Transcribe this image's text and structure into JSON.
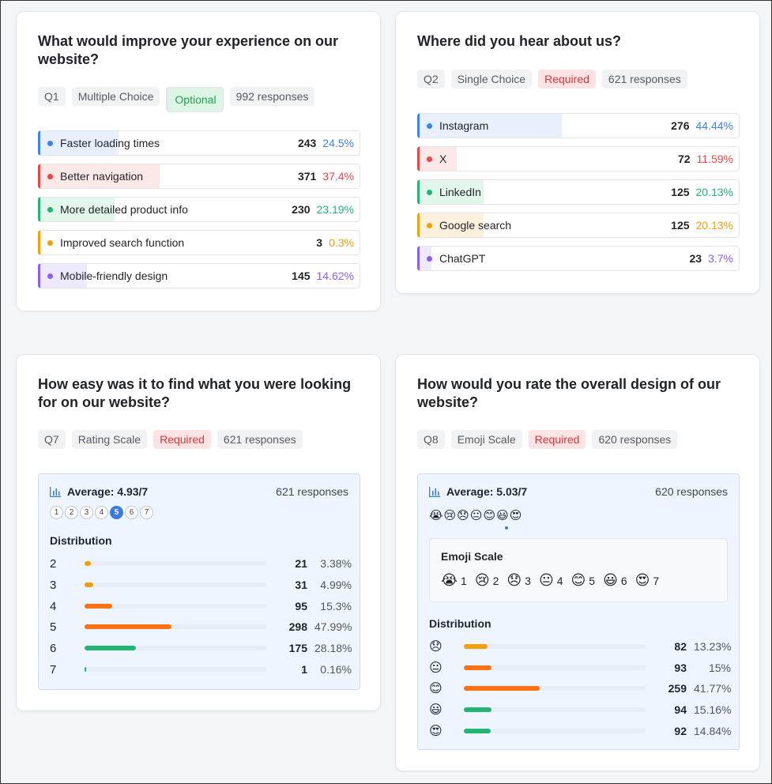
{
  "q1": {
    "title": "What would improve your experience on our website?",
    "tags": [
      "Q1",
      "Multiple Choice",
      "Optional",
      "992 responses"
    ],
    "options": [
      {
        "label": "Faster loading times",
        "count": "243",
        "pct": "24.5%",
        "fraction": 0.245,
        "color": "#3b82f6",
        "fill": "#e8f0fd"
      },
      {
        "label": "Better navigation",
        "count": "371",
        "pct": "37.4%",
        "fraction": 0.374,
        "color": "#ef4444",
        "fill": "#fde8e8"
      },
      {
        "label": "More detailed product info",
        "count": "230",
        "pct": "23.19%",
        "fraction": 0.2319,
        "color": "#22b573",
        "fill": "#e3f6ec"
      },
      {
        "label": "Improved search function",
        "count": "3",
        "pct": "0.3%",
        "fraction": 0.003,
        "color": "#f59e0b",
        "fill": "#fdf1dd"
      },
      {
        "label": "Mobile-friendly design",
        "count": "145",
        "pct": "14.62%",
        "fraction": 0.1462,
        "color": "#8b5cf6",
        "fill": "#efe9fd"
      }
    ]
  },
  "q2": {
    "title": "Where did you hear about us?",
    "tags": [
      "Q2",
      "Single Choice",
      "Required",
      "621 responses"
    ],
    "options": [
      {
        "label": "Instagram",
        "count": "276",
        "pct": "44.44%",
        "fraction": 0.4444,
        "color": "#3b82f6",
        "fill": "#e8f0fd"
      },
      {
        "label": "X",
        "count": "72",
        "pct": "11.59%",
        "fraction": 0.1159,
        "color": "#ef4444",
        "fill": "#fde8e8"
      },
      {
        "label": "LinkedIn",
        "count": "125",
        "pct": "20.13%",
        "fraction": 0.2013,
        "color": "#22b573",
        "fill": "#e3f6ec"
      },
      {
        "label": "Google search",
        "count": "125",
        "pct": "20.13%",
        "fraction": 0.2013,
        "color": "#f59e0b",
        "fill": "#fdf1dd"
      },
      {
        "label": "ChatGPT",
        "count": "23",
        "pct": "3.7%",
        "fraction": 0.037,
        "color": "#8b5cf6",
        "fill": "#efe9fd"
      }
    ]
  },
  "q7": {
    "title": "How easy was it to find what you were looking for on our website?",
    "tags": [
      "Q7",
      "Rating Scale",
      "Required",
      "621 responses"
    ],
    "average": "Average: 4.93/7",
    "responses": "621 responses",
    "scale": [
      "1",
      "2",
      "3",
      "4",
      "5",
      "6",
      "7"
    ],
    "selected": "5",
    "distribution_label": "Distribution",
    "rows": [
      {
        "key": "2",
        "count": "21",
        "pct": "3.38%",
        "fraction": 0.0338,
        "color": "#f59e0b"
      },
      {
        "key": "3",
        "count": "31",
        "pct": "4.99%",
        "fraction": 0.0499,
        "color": "#f59e0b"
      },
      {
        "key": "4",
        "count": "95",
        "pct": "15.3%",
        "fraction": 0.153,
        "color": "#f97316"
      },
      {
        "key": "5",
        "count": "298",
        "pct": "47.99%",
        "fraction": 0.4799,
        "color": "#f97316"
      },
      {
        "key": "6",
        "count": "175",
        "pct": "28.18%",
        "fraction": 0.2818,
        "color": "#22b573"
      },
      {
        "key": "7",
        "count": "1",
        "pct": "0.16%",
        "fraction": 0.0016,
        "color": "#22b573"
      }
    ]
  },
  "q8": {
    "title": "How would you rate the overall design of our website?",
    "tags": [
      "Q8",
      "Emoji Scale",
      "Required",
      "620 responses"
    ],
    "average": "Average: 5.03/7",
    "responses": "620 responses",
    "emojis": [
      "😭",
      "😢",
      "😞",
      "😐",
      "😊",
      "😃",
      "😍"
    ],
    "emoji_scale_title": "Emoji Scale",
    "emoji_scale": [
      {
        "e": "😭",
        "n": "1"
      },
      {
        "e": "😢",
        "n": "2"
      },
      {
        "e": "😞",
        "n": "3"
      },
      {
        "e": "😐",
        "n": "4"
      },
      {
        "e": "😊",
        "n": "5"
      },
      {
        "e": "😃",
        "n": "6"
      },
      {
        "e": "😍",
        "n": "7"
      }
    ],
    "distribution_label": "Distribution",
    "rows": [
      {
        "key": "😞",
        "count": "82",
        "pct": "13.23%",
        "fraction": 0.1323,
        "color": "#f59e0b"
      },
      {
        "key": "😐",
        "count": "93",
        "pct": "15%",
        "fraction": 0.15,
        "color": "#f97316"
      },
      {
        "key": "😊",
        "count": "259",
        "pct": "41.77%",
        "fraction": 0.4177,
        "color": "#f97316"
      },
      {
        "key": "😃",
        "count": "94",
        "pct": "15.16%",
        "fraction": 0.1516,
        "color": "#22b573"
      },
      {
        "key": "😍",
        "count": "92",
        "pct": "14.84%",
        "fraction": 0.1484,
        "color": "#22b573"
      }
    ]
  }
}
